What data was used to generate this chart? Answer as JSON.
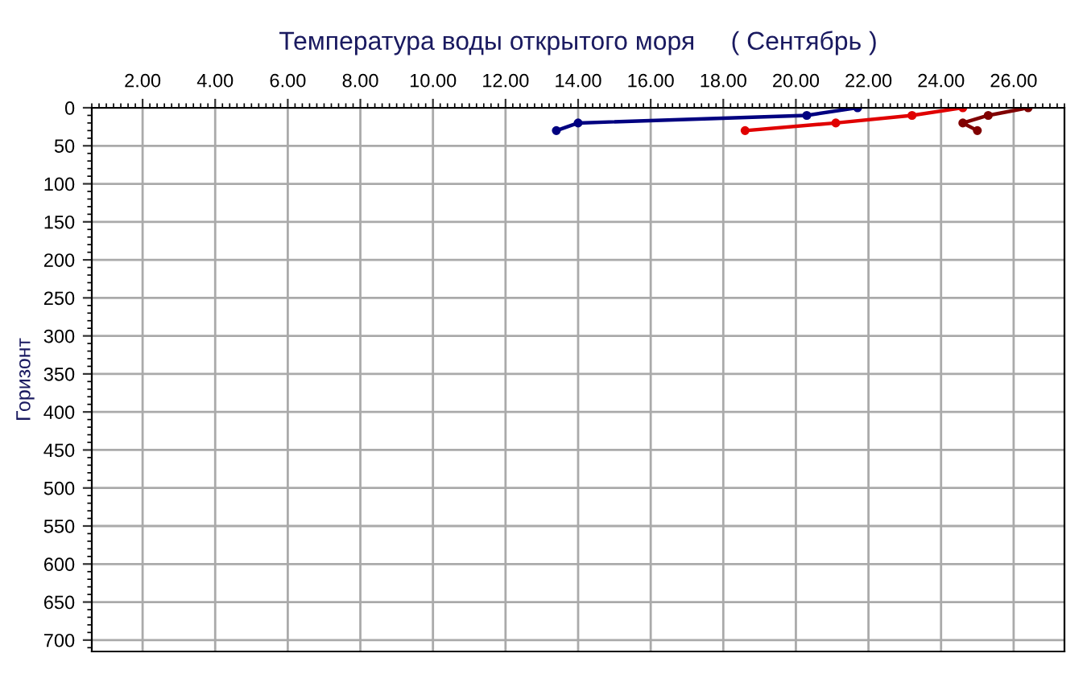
{
  "chart_data": {
    "type": "line",
    "title": "Температура воды открытого моря     ( Сентябрь )",
    "ylabel": "Горизонт",
    "xlim": [
      0.6,
      27.4
    ],
    "xticks": [
      {
        "value": 2,
        "label": "2.00"
      },
      {
        "value": 4,
        "label": "4.00"
      },
      {
        "value": 6,
        "label": "6.00"
      },
      {
        "value": 8,
        "label": "8.00"
      },
      {
        "value": 10,
        "label": "10.00"
      },
      {
        "value": 12,
        "label": "12.00"
      },
      {
        "value": 14,
        "label": "14.00"
      },
      {
        "value": 16,
        "label": "16.00"
      },
      {
        "value": 18,
        "label": "18.00"
      },
      {
        "value": 20,
        "label": "20.00"
      },
      {
        "value": 22,
        "label": "22.00"
      },
      {
        "value": 24,
        "label": "24.00"
      },
      {
        "value": 26,
        "label": "26.00"
      }
    ],
    "ylim": [
      715,
      0
    ],
    "yticks": [
      0,
      50,
      100,
      150,
      200,
      250,
      300,
      350,
      400,
      450,
      500,
      550,
      600,
      650,
      700
    ],
    "grid": true,
    "marker": "circle",
    "line_style": "solid",
    "series": [
      {
        "color": "#000080",
        "x": [
          13.4,
          14.0,
          20.3,
          21.7
        ],
        "values": [
          30,
          20,
          10,
          0
        ]
      },
      {
        "color": "#e00000",
        "x": [
          18.6,
          21.1,
          23.2,
          24.6
        ],
        "values": [
          30,
          20,
          10,
          0
        ]
      },
      {
        "color": "#800000",
        "x": [
          26.4,
          25.3,
          24.6,
          25.0
        ],
        "values": [
          0,
          10,
          20,
          30
        ]
      }
    ]
  }
}
